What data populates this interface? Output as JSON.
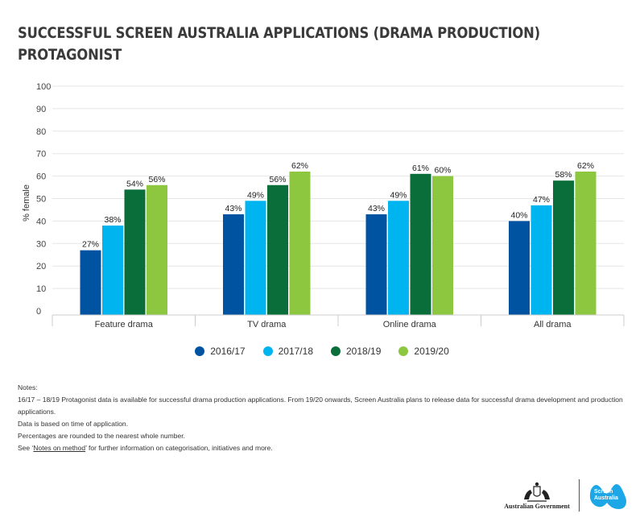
{
  "title": {
    "line1": "SUCCESSFUL SCREEN AUSTRALIA APPLICATIONS (DRAMA PRODUCTION)",
    "line2": "PROTAGONIST"
  },
  "chart_data": {
    "type": "bar",
    "categories": [
      "Feature drama",
      "TV drama",
      "Online drama",
      "All drama"
    ],
    "series": [
      {
        "name": "2016/17",
        "color": "#0053a0",
        "values": [
          27,
          43,
          43,
          40
        ]
      },
      {
        "name": "2017/18",
        "color": "#00b5ef",
        "values": [
          38,
          49,
          49,
          47
        ]
      },
      {
        "name": "2018/19",
        "color": "#0a6e3a",
        "values": [
          54,
          56,
          61,
          58
        ]
      },
      {
        "name": "2019/20",
        "color": "#8dc63f",
        "values": [
          56,
          62,
          60,
          62
        ]
      }
    ],
    "data_label_suffix": "%",
    "ylabel": "% female",
    "ylim": [
      0,
      100
    ],
    "yticks": [
      0,
      10,
      20,
      30,
      40,
      50,
      60,
      70,
      80,
      90,
      100
    ],
    "grid": true,
    "legend": "bottom-center"
  },
  "notes": {
    "heading": "Notes:",
    "line1": "16/17 – 18/19 Protagonist data is available for successful drama production applications. From 19/20 onwards, Screen Australia plans to release data for successful drama development and production applications.",
    "line2": "Data is based on time of application.",
    "line3": "Percentages are rounded to the nearest whole number.",
    "line4_prefix": "See ‘",
    "line4_link": "Notes on method",
    "line4_suffix": "’ for further information on categorisation, initiatives and more."
  },
  "logos": {
    "government": "Australian Government",
    "screen_line1": "Screen",
    "screen_line2": "Australia"
  },
  "colors": {
    "grid": "#e5e5e5",
    "axis": "#cccccc",
    "text": "#333333"
  }
}
